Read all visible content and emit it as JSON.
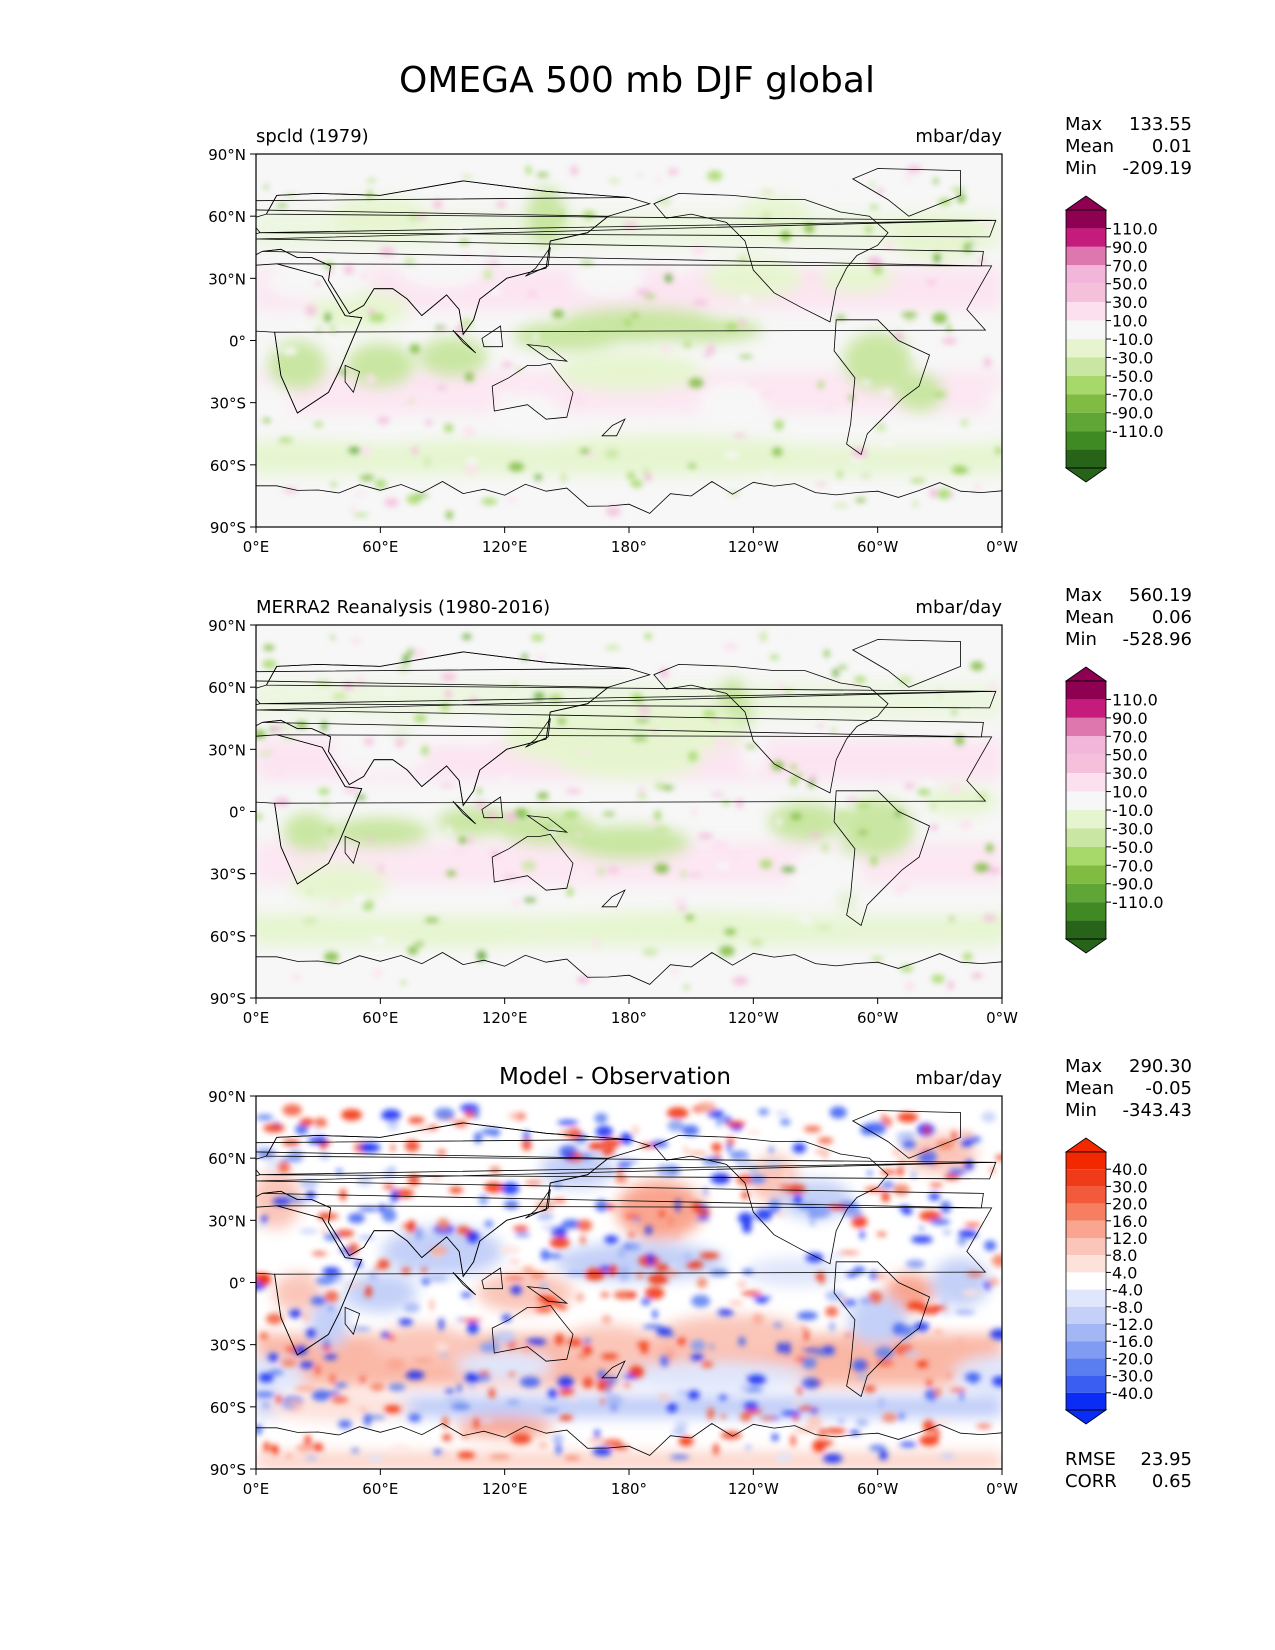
{
  "figure": {
    "title": "OMEGA 500 mb DJF global"
  },
  "colors": {
    "land_outline": "#000000",
    "background": "#ffffff",
    "full_field_cmap": [
      "#276419",
      "#3f8a22",
      "#5fa636",
      "#7fbc41",
      "#a6d96a",
      "#c9e6a2",
      "#e6f5d0",
      "#f7f7f7",
      "#fde0ef",
      "#f5c0dc",
      "#f1b6da",
      "#de77ae",
      "#c51b7d",
      "#8e0152"
    ],
    "diff_cmap": [
      "#0a2cf5",
      "#3a5df2",
      "#5a7ef0",
      "#7f9bf2",
      "#a4b7f5",
      "#c4d0f8",
      "#e0e6fb",
      "#ffffff",
      "#fde2dc",
      "#fbc6b9",
      "#f9a58f",
      "#f57f60",
      "#f25a3a",
      "#ef3b1a",
      "#f22800"
    ]
  },
  "chart_data": [
    {
      "type": "heatmap",
      "panel": "top",
      "left_title": "spcld (1979)",
      "center_title": "",
      "units": "mbar/day",
      "stats": {
        "max_label": "Max",
        "max": "133.55",
        "mean_label": "Mean",
        "mean": "0.01",
        "min_label": "Min",
        "min": "-209.19"
      },
      "colorbar": {
        "levels": [
          "110.0",
          "90.0",
          "70.0",
          "50.0",
          "30.0",
          "10.0",
          "-10.0",
          "-30.0",
          "-50.0",
          "-70.0",
          "-90.0",
          "-110.0"
        ],
        "extend": "both"
      },
      "xticks": [
        "0°E",
        "60°E",
        "120°E",
        "180°",
        "120°W",
        "60°W",
        "0°W"
      ],
      "yticks": [
        "90°N",
        "60°N",
        "30°N",
        "0°",
        "30°S",
        "60°S",
        "90°S"
      ],
      "xlim": [
        0,
        360
      ],
      "ylim": [
        -90,
        90
      ]
    },
    {
      "type": "heatmap",
      "panel": "middle",
      "left_title": "MERRA2 Reanalysis (1980-2016)",
      "center_title": "",
      "units": "mbar/day",
      "stats": {
        "max_label": "Max",
        "max": "560.19",
        "mean_label": "Mean",
        "mean": "0.06",
        "min_label": "Min",
        "min": "-528.96"
      },
      "colorbar": {
        "levels": [
          "110.0",
          "90.0",
          "70.0",
          "50.0",
          "30.0",
          "10.0",
          "-10.0",
          "-30.0",
          "-50.0",
          "-70.0",
          "-90.0",
          "-110.0"
        ],
        "extend": "both"
      },
      "xticks": [
        "0°E",
        "60°E",
        "120°E",
        "180°",
        "120°W",
        "60°W",
        "0°W"
      ],
      "yticks": [
        "90°N",
        "60°N",
        "30°N",
        "0°",
        "30°S",
        "60°S",
        "90°S"
      ],
      "xlim": [
        0,
        360
      ],
      "ylim": [
        -90,
        90
      ]
    },
    {
      "type": "heatmap",
      "panel": "bottom",
      "left_title": "",
      "center_title": "Model - Observation",
      "units": "mbar/day",
      "stats": {
        "max_label": "Max",
        "max": "290.30",
        "mean_label": "Mean",
        "mean": "-0.05",
        "min_label": "Min",
        "min": "-343.43"
      },
      "colorbar": {
        "levels": [
          "40.0",
          "30.0",
          "20.0",
          "16.0",
          "12.0",
          "8.0",
          "4.0",
          "-4.0",
          "-8.0",
          "-12.0",
          "-16.0",
          "-20.0",
          "-30.0",
          "-40.0"
        ],
        "extend": "both"
      },
      "extra_stats": {
        "rmse_label": "RMSE",
        "rmse": "23.95",
        "corr_label": "CORR",
        "corr": "0.65"
      },
      "xticks": [
        "0°E",
        "60°E",
        "120°E",
        "180°",
        "120°W",
        "60°W",
        "0°W"
      ],
      "yticks": [
        "90°N",
        "60°N",
        "30°N",
        "0°",
        "30°S",
        "60°S",
        "90°S"
      ],
      "xlim": [
        0,
        360
      ],
      "ylim": [
        -90,
        90
      ]
    }
  ]
}
